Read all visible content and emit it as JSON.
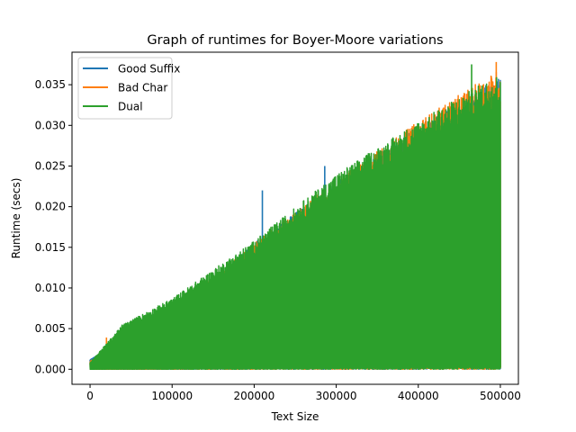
{
  "chart_data": {
    "type": "line",
    "title": "Graph of runtimes for Boyer-Moore variations",
    "xlabel": "Text Size",
    "ylabel": "Runtime (secs)",
    "xlim": [
      -22000,
      522000
    ],
    "ylim": [
      -0.00185,
      0.039
    ],
    "xticks": [
      0,
      100000,
      200000,
      300000,
      400000,
      500000
    ],
    "xtick_labels": [
      "0",
      "100000",
      "200000",
      "300000",
      "400000",
      "500000"
    ],
    "yticks": [
      0.0,
      0.005,
      0.01,
      0.015,
      0.02,
      0.025,
      0.03,
      0.035
    ],
    "ytick_labels": [
      "0.000",
      "0.005",
      "0.010",
      "0.015",
      "0.020",
      "0.025",
      "0.030",
      "0.035"
    ],
    "legend_position": "upper-left",
    "grid": false,
    "x_range": [
      0,
      500000
    ],
    "series": [
      {
        "name": "Good Suffix",
        "color": "#1f77b4",
        "envelope_points": [
          [
            0,
            0.0012
          ],
          [
            100000,
            0.007
          ],
          [
            200000,
            0.0155
          ],
          [
            300000,
            0.023
          ],
          [
            400000,
            0.03
          ],
          [
            500000,
            0.036
          ]
        ],
        "spikes": [
          [
            210000,
            0.022
          ],
          [
            286000,
            0.025
          ],
          [
            430000,
            0.0283
          ]
        ]
      },
      {
        "name": "Bad Char",
        "color": "#ff7f0e",
        "envelope_points": [
          [
            0,
            0.001
          ],
          [
            100000,
            0.007
          ],
          [
            200000,
            0.0155
          ],
          [
            300000,
            0.0232
          ],
          [
            400000,
            0.0305
          ],
          [
            500000,
            0.037
          ]
        ],
        "spikes": [
          [
            20000,
            0.0039
          ],
          [
            495000,
            0.0378
          ]
        ]
      },
      {
        "name": "Dual",
        "color": "#2ca02c",
        "envelope_points": [
          [
            0,
            0.0008
          ],
          [
            40000,
            0.0055
          ],
          [
            100000,
            0.0087
          ],
          [
            200000,
            0.0158
          ],
          [
            300000,
            0.024
          ],
          [
            400000,
            0.0305
          ],
          [
            500000,
            0.0365
          ]
        ],
        "spikes": [
          [
            39000,
            0.0055
          ],
          [
            465000,
            0.0375
          ]
        ]
      }
    ]
  }
}
